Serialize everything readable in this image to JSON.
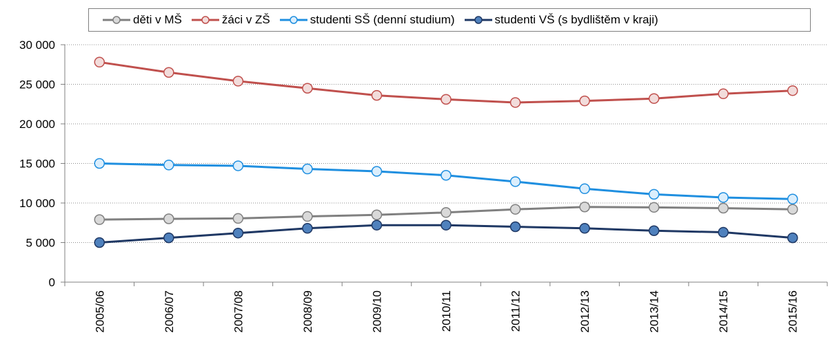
{
  "chart_data": {
    "type": "line",
    "categories": [
      "2005/06",
      "2006/07",
      "2007/08",
      "2008/09",
      "2009/10",
      "2010/11",
      "2011/12",
      "2012/13",
      "2013/14",
      "2014/15",
      "2015/16"
    ],
    "ylim": [
      0,
      30000
    ],
    "yticks": [
      0,
      5000,
      10000,
      15000,
      20000,
      25000,
      30000
    ],
    "ytick_labels": [
      "0",
      "5 000",
      "10 000",
      "15 000",
      "20 000",
      "25 000",
      "30 000"
    ],
    "grid": "horizontal dotted",
    "legend_position": "top",
    "series": [
      {
        "name": "děti v MŠ",
        "color": "#808080",
        "marker_fill": "#d9d9d9",
        "values": [
          7900,
          8000,
          8050,
          8300,
          8500,
          8800,
          9200,
          9500,
          9450,
          9350,
          9200
        ]
      },
      {
        "name": "žáci v ZŠ",
        "color": "#c0504d",
        "marker_fill": "#f2dcdb",
        "values": [
          27800,
          26500,
          25400,
          24500,
          23600,
          23100,
          22700,
          22900,
          23200,
          23800,
          24200
        ]
      },
      {
        "name": "studenti SŠ (denní studium)",
        "color": "#1f8fe0",
        "marker_fill": "#dbeefc",
        "values": [
          15000,
          14800,
          14700,
          14300,
          14000,
          13500,
          12700,
          11800,
          11100,
          10700,
          10500
        ]
      },
      {
        "name": "studenti VŠ (s bydlištěm v kraji)",
        "color": "#1f3864",
        "marker_fill": "#4f81bd",
        "values": [
          5000,
          5600,
          6200,
          6800,
          7200,
          7200,
          7000,
          6800,
          6500,
          6300,
          5600
        ]
      }
    ]
  }
}
